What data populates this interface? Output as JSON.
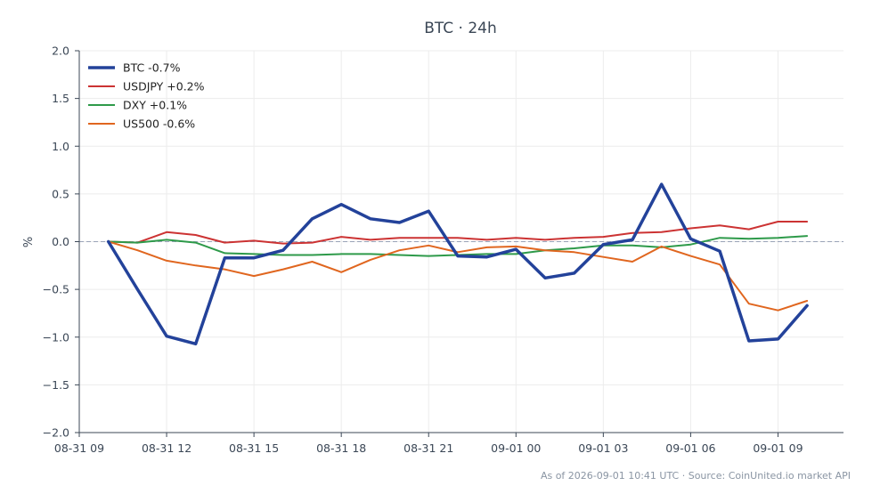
{
  "chart_data": {
    "type": "line",
    "title": "BTC · 24h",
    "xlabel": "",
    "ylabel": "%",
    "ylim": [
      -2.0,
      2.0
    ],
    "yticks": [
      2.0,
      1.5,
      1.0,
      0.5,
      0.0,
      -0.5,
      -1.0,
      -1.5,
      -2.0
    ],
    "ytick_labels": [
      "2.0",
      "1.5",
      "1.0",
      "0.5",
      "0.0",
      "−0.5",
      "−1.0",
      "−1.5",
      "−2.0"
    ],
    "xlim": [
      "2026-08-31 09:00",
      "2026-09-01 11:15"
    ],
    "xticks": [
      "2026-08-31 09:00",
      "2026-08-31 12:00",
      "2026-08-31 15:00",
      "2026-08-31 18:00",
      "2026-08-31 21:00",
      "2026-09-01 00:00",
      "2026-09-01 03:00",
      "2026-09-01 06:00",
      "2026-09-01 09:00"
    ],
    "xtick_labels": [
      "08-31 09",
      "08-31 12",
      "08-31 15",
      "08-31 18",
      "08-31 21",
      "09-01 00",
      "09-01 03",
      "09-01 06",
      "09-01 09"
    ],
    "x": [
      "2026-08-31 10:00",
      "2026-08-31 11:00",
      "2026-08-31 12:00",
      "2026-08-31 13:00",
      "2026-08-31 14:00",
      "2026-08-31 15:00",
      "2026-08-31 16:00",
      "2026-08-31 17:00",
      "2026-08-31 18:00",
      "2026-08-31 19:00",
      "2026-08-31 20:00",
      "2026-08-31 21:00",
      "2026-08-31 22:00",
      "2026-08-31 23:00",
      "2026-09-01 00:00",
      "2026-09-01 01:00",
      "2026-09-01 02:00",
      "2026-09-01 03:00",
      "2026-09-01 04:00",
      "2026-09-01 05:00",
      "2026-09-01 06:00",
      "2026-09-01 07:00",
      "2026-09-01 08:00",
      "2026-09-01 09:00",
      "2026-09-01 10:00"
    ],
    "reference_line": {
      "y": 0.0,
      "style": "dashed",
      "color": "#9aa3b8"
    },
    "grid": true,
    "legend_position": "top-left",
    "series": [
      {
        "name": "BTC -0.7%",
        "color": "#23429a",
        "width": 3.5,
        "values": [
          0.0,
          -0.5,
          -0.99,
          -1.07,
          -0.17,
          -0.17,
          -0.09,
          0.24,
          0.39,
          0.24,
          0.2,
          0.32,
          -0.15,
          -0.16,
          -0.08,
          -0.38,
          -0.33,
          -0.03,
          0.02,
          0.6,
          0.03,
          -0.1,
          -1.04,
          -1.02,
          -0.67
        ]
      },
      {
        "name": "USDJPY +0.2%",
        "color": "#cc3333",
        "width": 2,
        "values": [
          0.0,
          -0.01,
          0.1,
          0.07,
          -0.01,
          0.01,
          -0.02,
          -0.01,
          0.05,
          0.02,
          0.04,
          0.04,
          0.04,
          0.02,
          0.04,
          0.02,
          0.04,
          0.05,
          0.09,
          0.1,
          0.14,
          0.17,
          0.13,
          0.21,
          0.21
        ]
      },
      {
        "name": "DXY +0.1%",
        "color": "#2e9a4a",
        "width": 2,
        "values": [
          0.0,
          -0.01,
          0.02,
          -0.01,
          -0.12,
          -0.13,
          -0.14,
          -0.14,
          -0.13,
          -0.13,
          -0.14,
          -0.15,
          -0.14,
          -0.13,
          -0.13,
          -0.09,
          -0.07,
          -0.04,
          -0.04,
          -0.06,
          -0.03,
          0.04,
          0.03,
          0.04,
          0.06
        ]
      },
      {
        "name": "US500 -0.6%",
        "color": "#e0661f",
        "width": 2,
        "values": [
          0.0,
          -0.09,
          -0.2,
          -0.25,
          -0.29,
          -0.36,
          -0.29,
          -0.21,
          -0.32,
          -0.19,
          -0.09,
          -0.04,
          -0.11,
          -0.06,
          -0.05,
          -0.09,
          -0.11,
          -0.16,
          -0.21,
          -0.05,
          -0.15,
          -0.24,
          -0.65,
          -0.72,
          -0.62
        ]
      }
    ]
  },
  "footer": {
    "source": "As of 2026-09-01 10:41 UTC · Source: CoinUnited.io market API"
  }
}
